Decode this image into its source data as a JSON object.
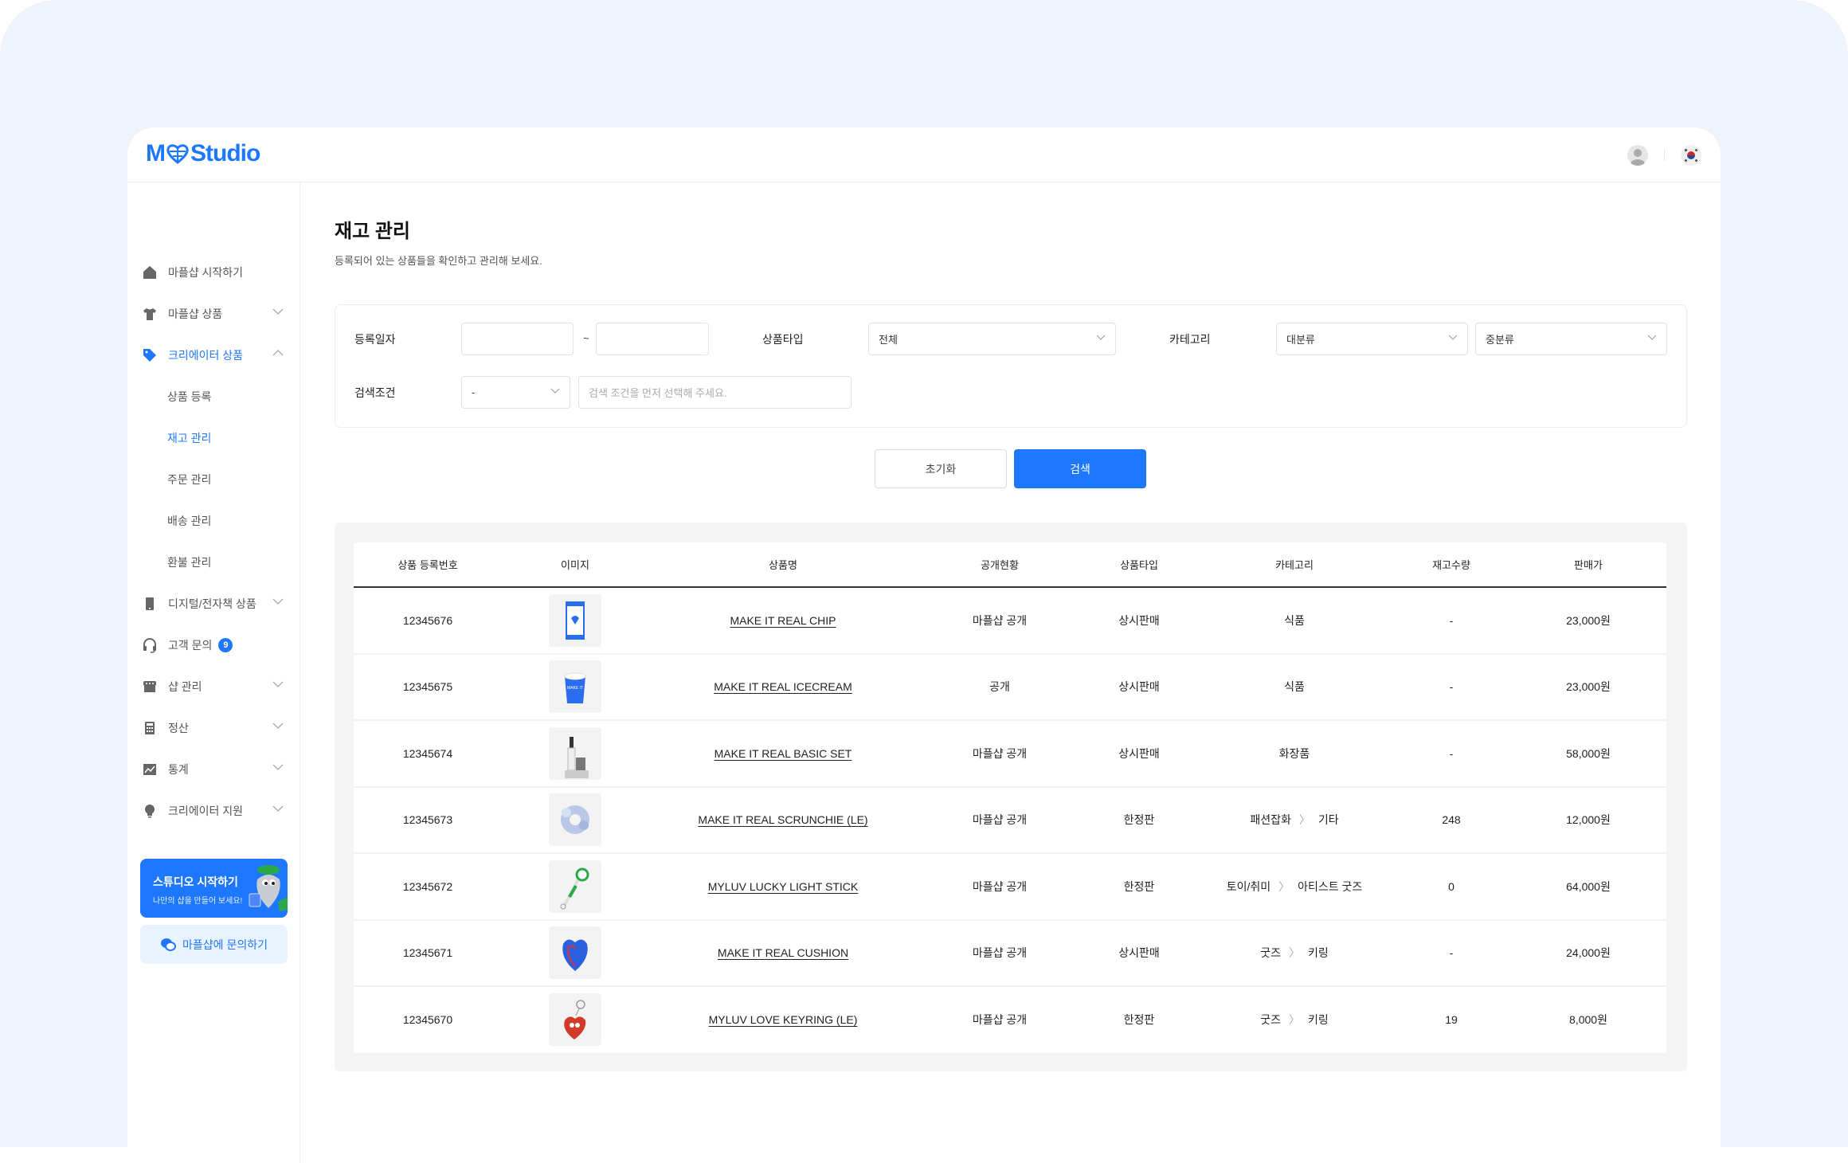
{
  "app": {
    "logo": "M♡Studio",
    "logo_left": "M",
    "logo_right": "Studio"
  },
  "colors": {
    "accent": "#1e78ff",
    "background": "#eef3fc"
  },
  "header": {
    "icons": [
      "user-avatar-icon",
      "korea-flag-icon"
    ]
  },
  "sidebar": {
    "items": [
      {
        "label": "마플샵 시작하기",
        "icon": "home-icon"
      },
      {
        "label": "마플샵 상품",
        "icon": "tshirt-icon",
        "chevron": "down"
      },
      {
        "label": "크리에이터 상품",
        "icon": "tag-icon",
        "chevron": "up",
        "active": true
      },
      {
        "label": "상품 등록",
        "sub": true
      },
      {
        "label": "재고 관리",
        "sub": true,
        "active": true
      },
      {
        "label": "주문 관리",
        "sub": true
      },
      {
        "label": "배송 관리",
        "sub": true
      },
      {
        "label": "환불 관리",
        "sub": true
      },
      {
        "label": "디지털/전자책 상품",
        "icon": "tablet-icon",
        "chevron": "down"
      },
      {
        "label": "고객 문의",
        "icon": "headset-icon",
        "badge": "9"
      },
      {
        "label": "샵 관리",
        "icon": "store-icon",
        "chevron": "down"
      },
      {
        "label": "정산",
        "icon": "calculator-icon",
        "chevron": "down"
      },
      {
        "label": "통계",
        "icon": "chart-icon",
        "chevron": "down"
      },
      {
        "label": "크리에이터 지원",
        "icon": "bulb-icon",
        "chevron": "down"
      }
    ],
    "banner": {
      "title": "스튜디오 시작하기",
      "subtitle": "나만의 샵을 만들어 보세요!"
    },
    "inquiry": "마플샵에 문의하기"
  },
  "page": {
    "title": "재고 관리",
    "subtitle": "등록되어 있는 상품들을 확인하고 관리해 보세요."
  },
  "filter": {
    "date_label": "등록일자",
    "date_from": "",
    "date_to": "",
    "tilde": "~",
    "type_label": "상품타입",
    "type_value": "전체",
    "category_label": "카테고리",
    "category_main": "대분류",
    "category_mid": "중분류",
    "condition_label": "검색조건",
    "condition_value": "-",
    "condition_placeholder": "검색 조건을 먼저 선택해 주세요.",
    "reset": "초기화",
    "search": "검색"
  },
  "table": {
    "columns": [
      "상품 등록번호",
      "이미지",
      "상품명",
      "공개현황",
      "상품타입",
      "카테고리",
      "재고수량",
      "판매가"
    ],
    "rows": [
      {
        "id": "12345676",
        "name": "MAKE IT REAL CHIP",
        "visibility": "마플샵 공개",
        "type": "상시판매",
        "cat1": "식품",
        "cat2": "",
        "stock": "-",
        "price": "23,000원",
        "thumb": "chip"
      },
      {
        "id": "12345675",
        "name": "MAKE IT REAL ICECREAM",
        "visibility": "공개",
        "type": "상시판매",
        "cat1": "식품",
        "cat2": "",
        "stock": "-",
        "price": "23,000원",
        "thumb": "icecream"
      },
      {
        "id": "12345674",
        "name": "MAKE IT REAL BASIC SET",
        "visibility": "마플샵 공개",
        "type": "상시판매",
        "cat1": "화장품",
        "cat2": "",
        "stock": "-",
        "price": "58,000원",
        "thumb": "cosmetic"
      },
      {
        "id": "12345673",
        "name": "MAKE IT REAL SCRUNCHIE (LE)",
        "visibility": "마플샵 공개",
        "type": "한정판",
        "cat1": "패션잡화",
        "cat2": "기타",
        "stock": "248",
        "price": "12,000원",
        "thumb": "scrunchie"
      },
      {
        "id": "12345672",
        "name": "MYLUV LUCKY LIGHT STICK",
        "visibility": "마플샵 공개",
        "type": "한정판",
        "cat1": "토이/취미",
        "cat2": "아티스트 굿즈",
        "stock": "0",
        "price": "64,000원",
        "thumb": "lightstick"
      },
      {
        "id": "12345671",
        "name": "MAKE IT REAL CUSHION",
        "visibility": "마플샵 공개",
        "type": "상시판매",
        "cat1": "굿즈",
        "cat2": "키링",
        "stock": "-",
        "price": "24,000원",
        "thumb": "cushion"
      },
      {
        "id": "12345670",
        "name": "MYLUV LOVE KEYRING (LE)",
        "visibility": "마플샵 공개",
        "type": "한정판",
        "cat1": "굿즈",
        "cat2": "키링",
        "stock": "19",
        "price": "8,000원",
        "thumb": "keyring"
      }
    ]
  }
}
